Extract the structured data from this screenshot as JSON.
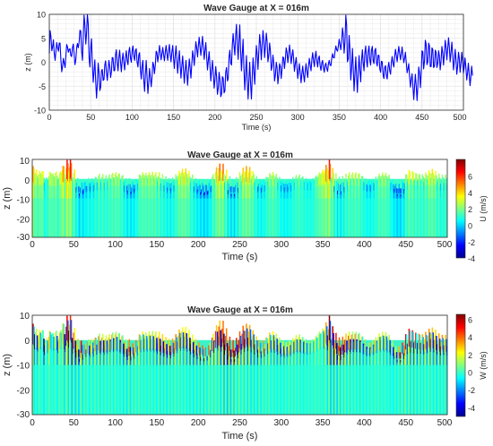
{
  "colors": {
    "trace": "#0000ff",
    "grid": "#e3e3e3",
    "axis": "#262626",
    "colormap": [
      "#00008f",
      "#0000ff",
      "#0080ff",
      "#00ffff",
      "#80ff80",
      "#ffff00",
      "#ff8000",
      "#ff0000",
      "#800000"
    ],
    "water_background": "#3df2c9"
  },
  "panels": [
    {
      "title": "Wave Gauge at X = 016m",
      "xlabel": "Time (s)",
      "ylabel": "z (m)",
      "xticks": [
        "0",
        "50",
        "100",
        "150",
        "200",
        "250",
        "300",
        "350",
        "400",
        "450",
        "500"
      ],
      "yticks": [
        "10",
        "5",
        "0",
        "-5",
        "-10"
      ]
    },
    {
      "title": "Wave Gauge at X = 016m",
      "xlabel": "Time (s)",
      "ylabel": "z (m)",
      "xticks": [
        "0",
        "50",
        "100",
        "150",
        "200",
        "250",
        "300",
        "350",
        "400",
        "450",
        "500"
      ],
      "yticks": [
        "10",
        "0",
        "-10",
        "-20",
        "-30"
      ],
      "colorbar_label": "U (m/s)",
      "colorbar_ticks": [
        "6",
        "4",
        "2",
        "0",
        "-2",
        "-4"
      ]
    },
    {
      "title": "Wave Gauge at X = 016m",
      "xlabel": "Time (s)",
      "ylabel": "z (m)",
      "xticks": [
        "0",
        "50",
        "100",
        "150",
        "200",
        "250",
        "300",
        "350",
        "400",
        "450",
        "500"
      ],
      "yticks": [
        "10",
        "0",
        "-10",
        "-20",
        "-30"
      ],
      "colorbar_label": "W (m/s)",
      "colorbar_ticks": [
        "6",
        "4",
        "2",
        "0",
        "-2",
        "-4"
      ]
    }
  ],
  "chart_data": [
    {
      "type": "line",
      "title": "Wave Gauge at X = 016m",
      "xlabel": "Time (s)",
      "ylabel": "z (m)",
      "xlim": [
        0,
        500
      ],
      "ylim": [
        -10,
        10
      ],
      "grid": true,
      "x_start": 0,
      "x_step": 1,
      "series": [
        {
          "values": [
            1.8,
            6.6,
            5.4,
            2.4,
            3.2,
            4.7,
            1.9,
            0.4,
            2.4,
            4.1,
            3.0,
            2.3,
            4.0,
            4.0,
            0.6,
            -2.0,
            -0.9,
            0.8,
            -0.1,
            -1.1,
            1.3,
            3.7,
            3.2,
            2.1,
            2.7,
            2.8,
            1.4,
            1.2,
            3.1,
            3.8,
            1.7,
            -0.5,
            0.5,
            3.0,
            3.9,
            3.0,
            4.2,
            6.7,
            6.5,
            2.4,
            0.4,
            5.4,
            9.8,
            7.9,
            3.8,
            6.1,
            10.0,
            8.1,
            0.9,
            -1.0,
            3.0,
            4.9,
            -0.2,
            -4.2,
            -1.9,
            0.5,
            -3.8,
            -7.5,
            -4.5,
            -0.2,
            -2.0,
            -5.9,
            -5.2,
            -1.8,
            -1.5,
            -3.8,
            -3.6,
            -0.6,
            0.3,
            -2.2,
            -3.8,
            -1.7,
            0.4,
            -1.0,
            -3.2,
            -2.0,
            1.0,
            0.9,
            -1.8,
            -1.7,
            1.6,
            2.6,
            -0.3,
            -1.8,
            1.0,
            2.5,
            -0.1,
            -2.0,
            0.4,
            1.9,
            -0.2,
            -1.6,
            1.0,
            2.4,
            0.3,
            -0.5,
            2.2,
            3.1,
            0.8,
            0.0,
            2.4,
            3.4,
            1.3,
            0.4,
            2.5,
            2.8,
            0.1,
            -1.0,
            1.5,
            2.0,
            -1.4,
            -3.5,
            -0.8,
            0.4,
            -3.5,
            -6.1,
            -2.6,
            0.4,
            -2.8,
            -6.5,
            -4.4,
            -1.3,
            -3.0,
            -5.1,
            -3.1,
            0.0,
            -0.6,
            -2.4,
            -0.5,
            2.3,
            2.0,
            0.1,
            1.5,
            3.5,
            2.3,
            0.5,
            1.8,
            3.1,
            1.6,
            0.3,
            2.1,
            3.5,
            1.8,
            0.4,
            2.4,
            3.7,
            1.6,
            0.1,
            2.2,
            3.5,
            0.9,
            -1.3,
            1.3,
            3.4,
            0.6,
            -2.3,
            0.1,
            2.4,
            -0.5,
            -3.3,
            -0.9,
            1.3,
            -1.6,
            -4.4,
            -1.9,
            0.4,
            -2.3,
            -4.8,
            -2.0,
            0.7,
            -1.1,
            -3.3,
            -0.6,
            2.4,
            1.2,
            -0.7,
            1.8,
            4.3,
            2.9,
            1.1,
            3.4,
            5.2,
            3.1,
            1.4,
            3.5,
            5.4,
            2.8,
            0.6,
            2.5,
            4.1,
            1.0,
            -1.6,
            0.4,
            2.2,
            -0.8,
            -3.9,
            -1.8,
            0.4,
            -2.2,
            -5.4,
            -3.7,
            -0.9,
            -3.0,
            -6.7,
            -5.4,
            -2.1,
            -3.5,
            -7.2,
            -6.6,
            -3.0,
            -3.3,
            -6.4,
            -6.0,
            -2.1,
            -1.1,
            -3.9,
            -3.4,
            1.0,
            2.5,
            -0.2,
            -0.6,
            3.6,
            6.0,
            3.4,
            1.5,
            5.5,
            7.9,
            4.0,
            0.6,
            4.6,
            7.8,
            2.6,
            -1.8,
            1.7,
            4.8,
            -1.2,
            -5.8,
            -2.4,
            1.4,
            -3.9,
            -7.7,
            -3.7,
            0.0,
            -4.2,
            -7.7,
            -3.1,
            0.9,
            -1.8,
            -4.6,
            0.1,
            3.5,
            1.7,
            -1.5,
            2.5,
            5.8,
            3.8,
            0.5,
            3.7,
            6.6,
            4.7,
            1.0,
            3.4,
            6.1,
            4.3,
            0.1,
            1.5,
            4.0,
            2.3,
            -1.7,
            -0.8,
            1.5,
            -0.1,
            -3.9,
            -2.6,
            0.0,
            -1.1,
            -4.5,
            -3.0,
            -0.3,
            -0.9,
            -3.4,
            -1.6,
            1.1,
            0.9,
            -1.3,
            0.6,
            3.0,
            2.1,
            -0.1,
            1.6,
            3.6,
            2.0,
            -0.3,
            1.2,
            2.6,
            0.6,
            -1.9,
            -0.4,
            1.0,
            -1.1,
            -3.4,
            -1.8,
            -0.3,
            -2.4,
            -4.3,
            -2.4,
            -0.8,
            -2.7,
            -4.1,
            -1.9,
            -0.3,
            -2.0,
            -3.2,
            -0.8,
            0.8,
            -0.7,
            -1.8,
            0.5,
            2.0,
            0.3,
            -0.9,
            1.2,
            2.3,
            0.2,
            -1.0,
            0.8,
            1.3,
            -0.7,
            -1.7,
            -0.1,
            0.4,
            -1.2,
            -2.1,
            -0.6,
            -0.2,
            -1.3,
            -1.9,
            -0.3,
            0.4,
            -0.6,
            -0.7,
            0.8,
            1.8,
            1.0,
            0.9,
            2.3,
            3.4,
            2.6,
            2.3,
            3.4,
            4.8,
            3.7,
            2.6,
            4.4,
            7.2,
            5.6,
            1.9,
            4.4,
            9.8,
            7.7,
            0.1,
            0.7,
            5.6,
            2.8,
            -3.7,
            -1.2,
            2.9,
            -1.2,
            -6.0,
            -2.3,
            1.1,
            -2.9,
            -6.3,
            -1.8,
            1.4,
            -1.8,
            -4.1,
            0.2,
            2.6,
            -0.2,
            -1.8,
            1.8,
            3.4,
            0.4,
            -1.0,
            2.2,
            3.4,
            0.4,
            -0.6,
            2.5,
            3.3,
            0.3,
            -0.3,
            2.4,
            2.9,
            -0.1,
            -0.8,
            1.5,
            1.4,
            -1.4,
            -2.1,
            0.2,
            0.1,
            -2.7,
            -3.4,
            -1.1,
            -0.7,
            -2.9,
            -3.5,
            -1.0,
            0.0,
            -1.8,
            -2.5,
            -0.1,
            1.2,
            -0.3,
            -1.0,
            1.2,
            2.7,
            1.3,
            0.1,
            1.8,
            3.3,
            1.8,
            0.5,
            1.8,
            3.2,
            1.5,
            -0.1,
            0.9,
            2.1,
            0.0,
            -2.2,
            -1.4,
            -0.3,
            -2.8,
            -5.2,
            -3.6,
            -2.4,
            -4.8,
            -7.8,
            -5.0,
            -2.5,
            -4.9,
            -8.0,
            -4.9,
            -1.0,
            -2.1,
            -5.3,
            -2.2,
            2.4,
            2.2,
            -1.4,
            0.3,
            4.6,
            3.8,
            -0.5,
            0.1,
            4.0,
            3.4,
            -0.9,
            -0.9,
            3.0,
            2.7,
            -1.1,
            -0.8,
            2.5,
            2.1,
            -1.1,
            -0.2,
            2.4,
            1.3,
            -1.6,
            0.4,
            3.3,
            2.0,
            -0.6,
            1.7,
            4.6,
            3.1,
            0.5,
            2.7,
            5.1,
            3.1,
            0.1,
            1.9,
            4.2,
            1.7,
            -1.6,
            0.0,
            2.7,
            0.6,
            -2.5,
            -0.9,
            2.1,
            0.8,
            -2.1,
            -0.4,
            2.1,
            0.4,
            -2.3,
            -1.1,
            0.9,
            -1.2,
            -3.7,
            -2.3,
            -0.2,
            -2.6,
            -4.9,
            -3.1,
            -0.8,
            -2.8
          ]
        }
      ]
    },
    {
      "type": "heatmap",
      "title": "Wave Gauge at X = 016m",
      "xlabel": "Time (s)",
      "ylabel": "z (m)",
      "xlim": [
        0,
        500
      ],
      "ylim": [
        -30,
        10
      ],
      "colorbar_label": "U (m/s)",
      "clim": [
        -5,
        7
      ]
    },
    {
      "type": "heatmap",
      "title": "Wave Gauge at X = 016m",
      "xlabel": "Time (s)",
      "ylabel": "z (m)",
      "xlim": [
        0,
        500
      ],
      "ylim": [
        -30,
        10
      ],
      "colorbar_label": "W (m/s)",
      "clim": [
        -5,
        7
      ]
    }
  ]
}
